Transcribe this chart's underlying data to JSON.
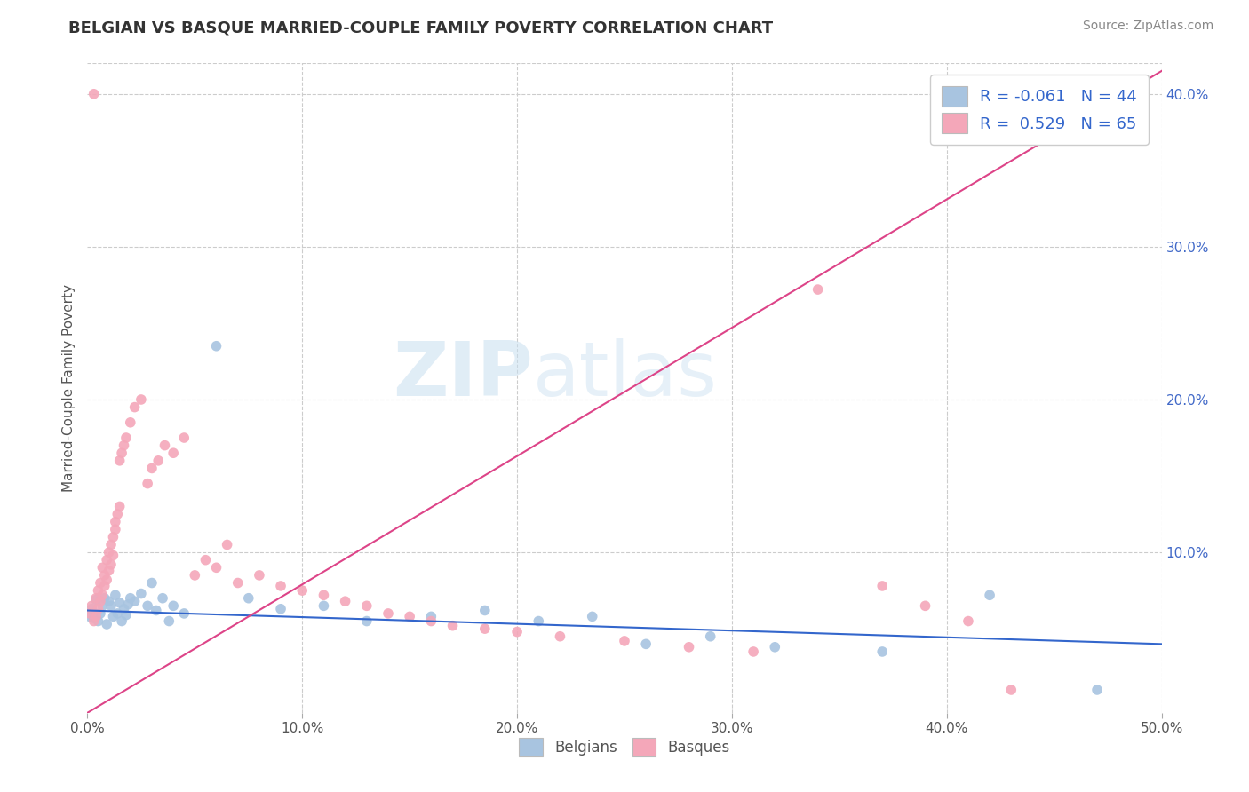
{
  "title": "BELGIAN VS BASQUE MARRIED-COUPLE FAMILY POVERTY CORRELATION CHART",
  "source": "Source: ZipAtlas.com",
  "ylabel": "Married-Couple Family Poverty",
  "xlim": [
    0.0,
    0.5
  ],
  "ylim": [
    -0.005,
    0.42
  ],
  "xtick_labels": [
    "0.0%",
    "10.0%",
    "20.0%",
    "30.0%",
    "40.0%",
    "50.0%"
  ],
  "xtick_vals": [
    0.0,
    0.1,
    0.2,
    0.3,
    0.4,
    0.5
  ],
  "ytick_labels": [
    "10.0%",
    "20.0%",
    "30.0%",
    "40.0%"
  ],
  "ytick_vals": [
    0.1,
    0.2,
    0.3,
    0.4
  ],
  "belgian_color": "#a8c4e0",
  "basque_color": "#f4a7b9",
  "belgian_line_color": "#3366cc",
  "basque_line_color": "#dd4488",
  "belgian_R": -0.061,
  "belgian_N": 44,
  "basque_R": 0.529,
  "basque_N": 65,
  "background_color": "#ffffff",
  "grid_color": "#cccccc",
  "belgian_line_y0": 0.062,
  "belgian_line_y1": 0.04,
  "basque_line_y0": -0.005,
  "basque_line_y1": 0.415,
  "belgian_x": [
    0.001,
    0.002,
    0.003,
    0.004,
    0.005,
    0.006,
    0.007,
    0.008,
    0.009,
    0.01,
    0.011,
    0.012,
    0.013,
    0.014,
    0.015,
    0.016,
    0.017,
    0.018,
    0.019,
    0.02,
    0.022,
    0.025,
    0.028,
    0.03,
    0.032,
    0.035,
    0.038,
    0.04,
    0.045,
    0.06,
    0.075,
    0.09,
    0.11,
    0.13,
    0.16,
    0.185,
    0.21,
    0.235,
    0.26,
    0.29,
    0.32,
    0.37,
    0.42,
    0.47
  ],
  "belgian_y": [
    0.058,
    0.063,
    0.057,
    0.069,
    0.055,
    0.06,
    0.065,
    0.07,
    0.053,
    0.068,
    0.065,
    0.058,
    0.072,
    0.06,
    0.067,
    0.055,
    0.063,
    0.059,
    0.066,
    0.07,
    0.068,
    0.073,
    0.065,
    0.08,
    0.062,
    0.07,
    0.055,
    0.065,
    0.06,
    0.235,
    0.07,
    0.063,
    0.065,
    0.055,
    0.058,
    0.062,
    0.055,
    0.058,
    0.04,
    0.045,
    0.038,
    0.035,
    0.072,
    0.01
  ],
  "basque_x": [
    0.001,
    0.002,
    0.003,
    0.003,
    0.004,
    0.004,
    0.005,
    0.005,
    0.006,
    0.006,
    0.007,
    0.007,
    0.008,
    0.008,
    0.009,
    0.009,
    0.01,
    0.01,
    0.011,
    0.011,
    0.012,
    0.012,
    0.013,
    0.013,
    0.014,
    0.015,
    0.015,
    0.016,
    0.017,
    0.018,
    0.02,
    0.022,
    0.025,
    0.028,
    0.03,
    0.033,
    0.036,
    0.04,
    0.045,
    0.05,
    0.055,
    0.06,
    0.065,
    0.07,
    0.08,
    0.09,
    0.1,
    0.11,
    0.12,
    0.13,
    0.14,
    0.15,
    0.16,
    0.17,
    0.185,
    0.2,
    0.22,
    0.25,
    0.28,
    0.31,
    0.34,
    0.37,
    0.39,
    0.41,
    0.43
  ],
  "basque_y": [
    0.06,
    0.065,
    0.055,
    0.4,
    0.058,
    0.07,
    0.063,
    0.075,
    0.068,
    0.08,
    0.072,
    0.09,
    0.078,
    0.085,
    0.082,
    0.095,
    0.088,
    0.1,
    0.092,
    0.105,
    0.098,
    0.11,
    0.115,
    0.12,
    0.125,
    0.13,
    0.16,
    0.165,
    0.17,
    0.175,
    0.185,
    0.195,
    0.2,
    0.145,
    0.155,
    0.16,
    0.17,
    0.165,
    0.175,
    0.085,
    0.095,
    0.09,
    0.105,
    0.08,
    0.085,
    0.078,
    0.075,
    0.072,
    0.068,
    0.065,
    0.06,
    0.058,
    0.055,
    0.052,
    0.05,
    0.048,
    0.045,
    0.042,
    0.038,
    0.035,
    0.272,
    0.078,
    0.065,
    0.055,
    0.01
  ]
}
